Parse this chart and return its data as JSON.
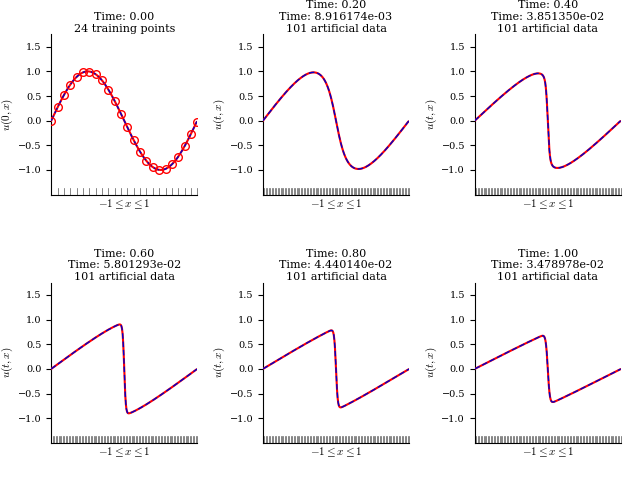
{
  "subplot_titles": [
    [
      "Time: 0.00",
      "24 training points"
    ],
    [
      "Time: 0.20",
      "Time: 8.916174e-03",
      "101 artificial data"
    ],
    [
      "Time: 0.40",
      "Time: 3.851350e-02",
      "101 artificial data"
    ],
    [
      "Time: 0.60",
      "Time: 5.801293e-02",
      "101 artificial data"
    ],
    [
      "Time: 0.80",
      "Time: 4.440140e-02",
      "101 artificial data"
    ],
    [
      "Time: 1.00",
      "Time: 3.478978e-02",
      "101 artificial data"
    ]
  ],
  "times": [
    0.0,
    0.2,
    0.4,
    0.6,
    0.8,
    1.0
  ],
  "ylim": [
    -1.5,
    1.75
  ],
  "yticks": [
    -1.0,
    -0.5,
    0.0,
    0.5,
    1.0,
    1.5
  ],
  "xlabel": "$-1 \\leq x \\leq 1$",
  "ylabels": [
    "$u(0, x)$",
    "$u(t, x)$",
    "$u(t, x)$",
    "$u(t, x)$",
    "$u(t, x)$",
    "$u(t, x)$"
  ],
  "line_color_exact": "#ff0000",
  "line_color_pred": "#0000cc",
  "marker_color": "#ff0000",
  "nu": 0.01,
  "figsize": [
    6.4,
    4.92
  ],
  "dpi": 100,
  "title_fontsize": 8,
  "label_fontsize": 8,
  "tick_fontsize": 7,
  "rug_color": "#555555",
  "rug_n_training": 24,
  "rug_n_artificial": 101
}
